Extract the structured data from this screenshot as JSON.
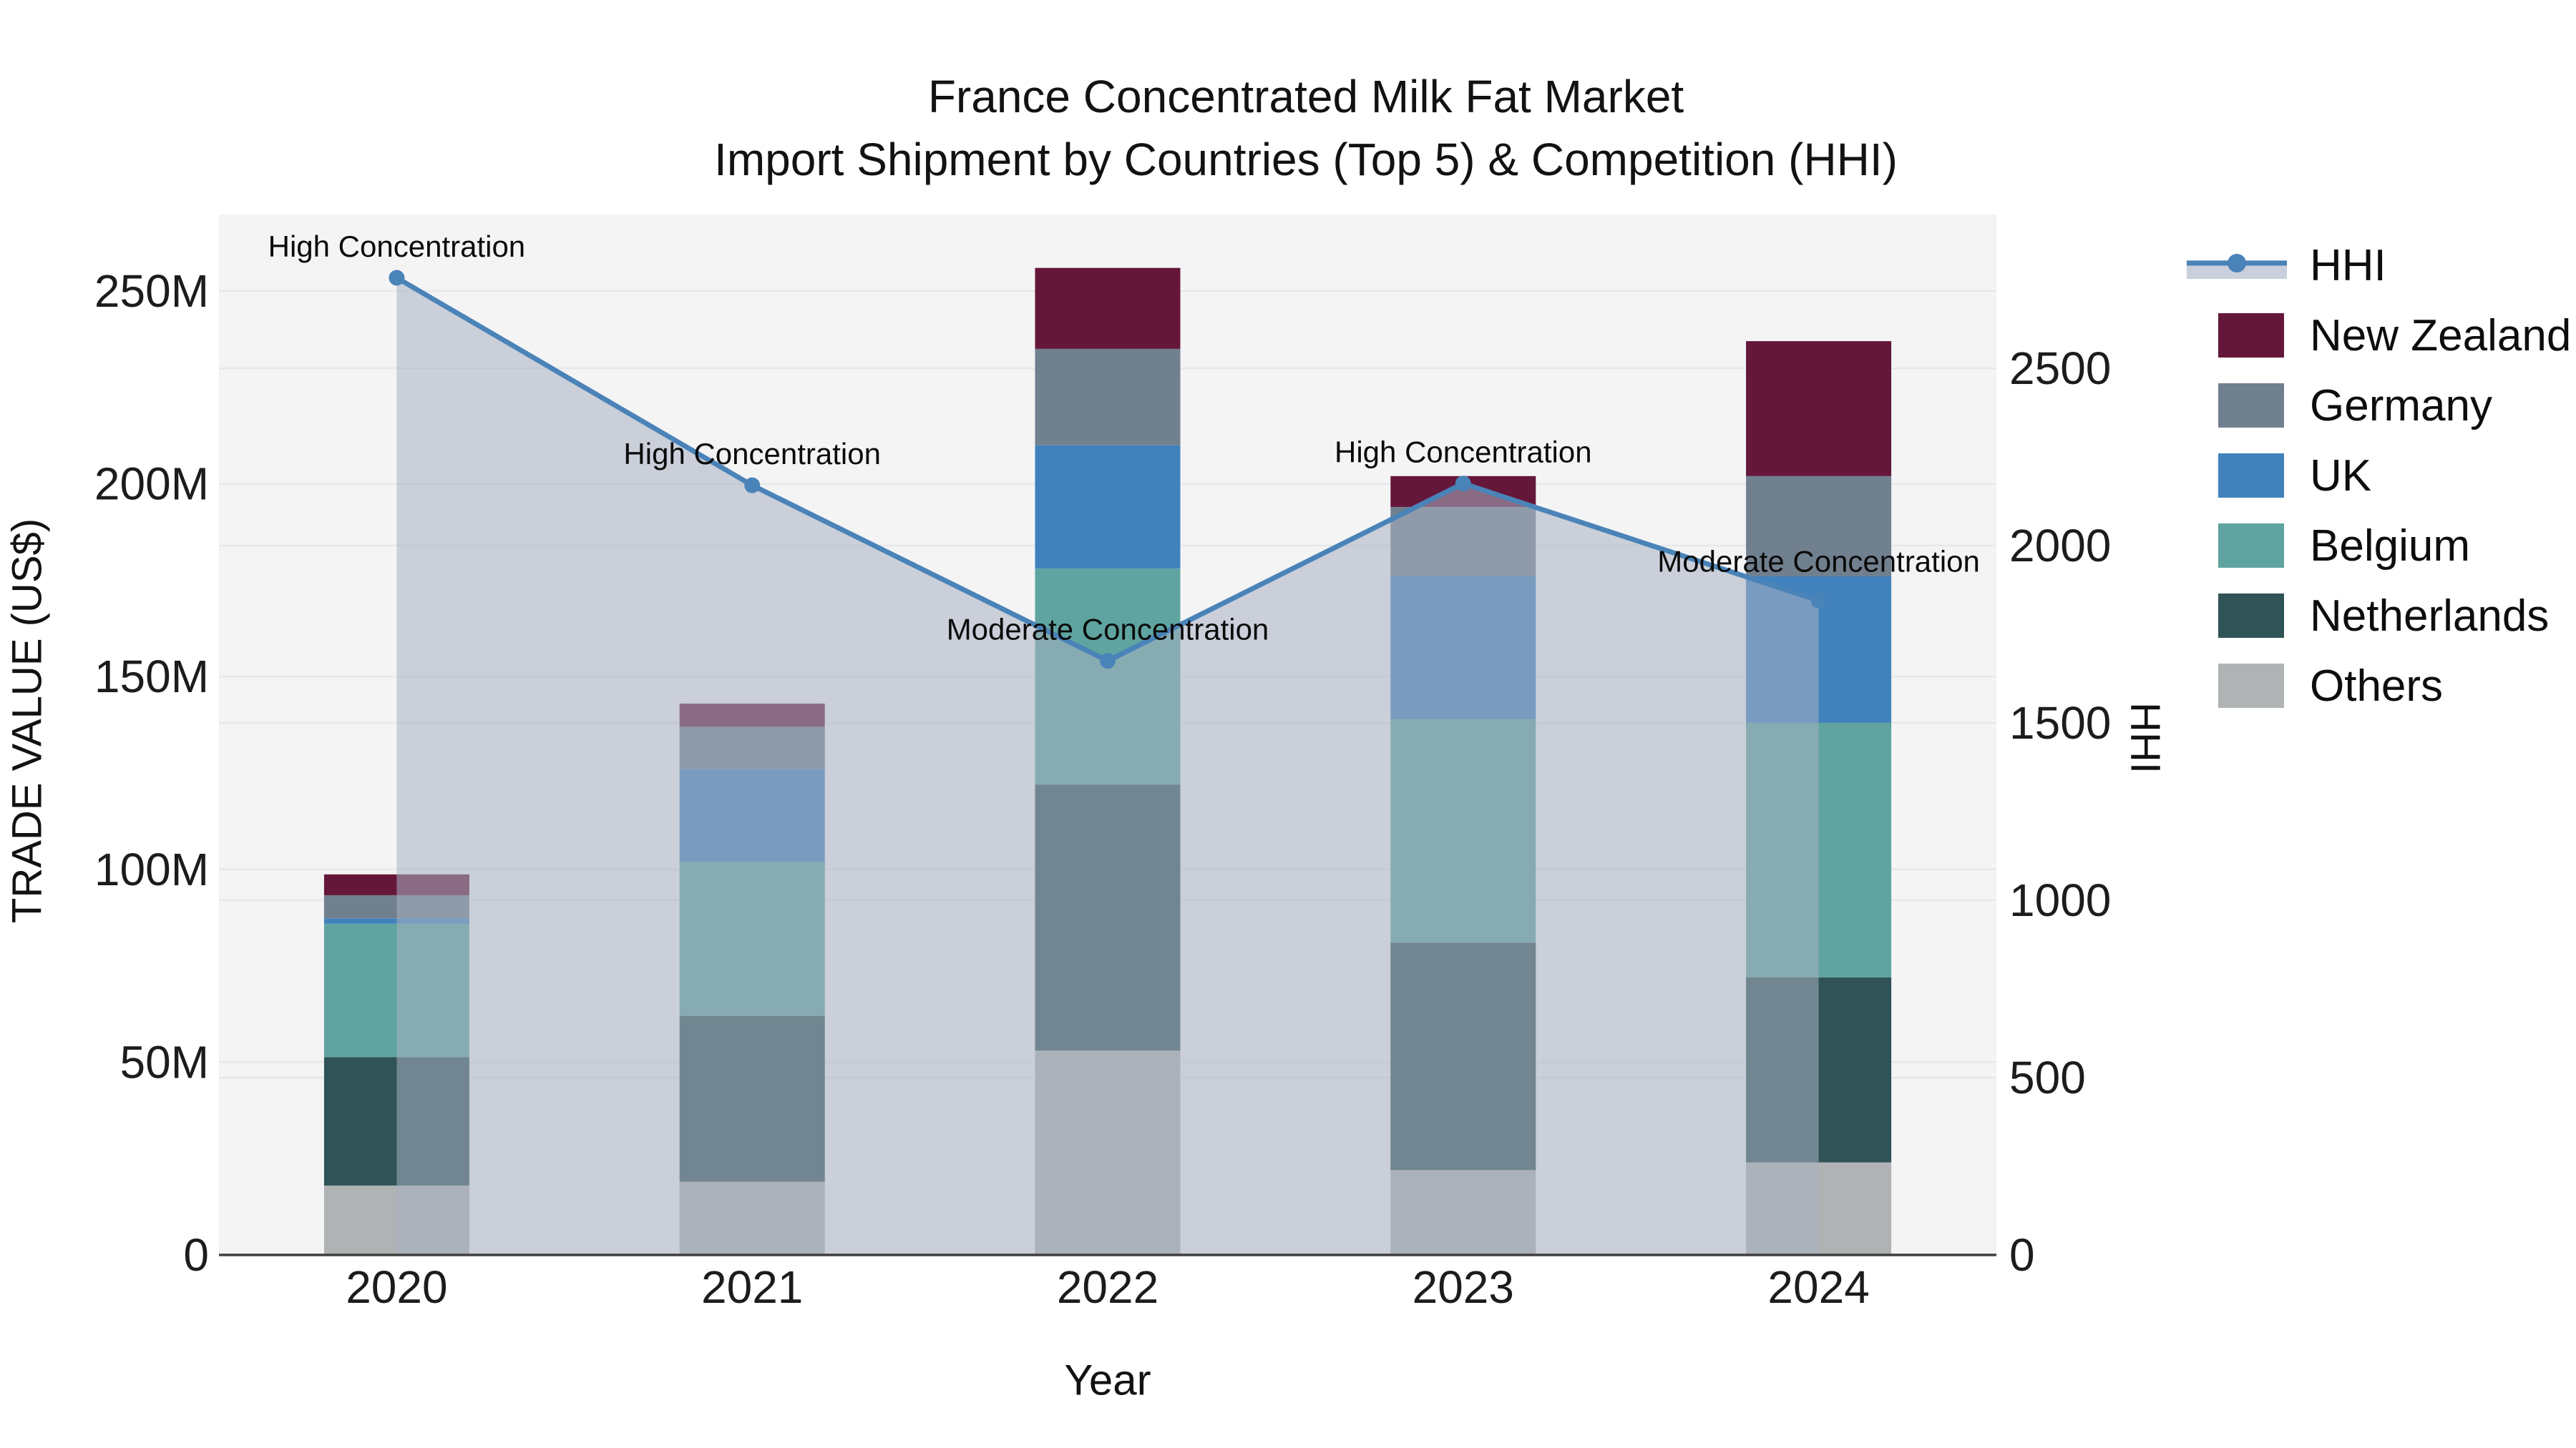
{
  "title": {
    "line1": "France Concentrated Milk Fat Market",
    "line2": "Import Shipment by Countries (Top 5) & Competition (HHI)"
  },
  "axes": {
    "x": {
      "title": "Year",
      "categories": [
        "2020",
        "2021",
        "2022",
        "2023",
        "2024"
      ]
    },
    "y_left": {
      "title": "TRADE VALUE (US$)",
      "ticks": [
        {
          "value": 0,
          "label": "0"
        },
        {
          "value": 50,
          "label": "50M"
        },
        {
          "value": 100,
          "label": "100M"
        },
        {
          "value": 150,
          "label": "150M"
        },
        {
          "value": 200,
          "label": "200M"
        },
        {
          "value": 250,
          "label": "250M"
        }
      ]
    },
    "y_right": {
      "title": "HHI",
      "ticks": [
        {
          "value": 0,
          "label": "0"
        },
        {
          "value": 500,
          "label": "500"
        },
        {
          "value": 1000,
          "label": "1000"
        },
        {
          "value": 1500,
          "label": "1500"
        },
        {
          "value": 2000,
          "label": "2000"
        },
        {
          "value": 2500,
          "label": "2500"
        }
      ]
    }
  },
  "chart_data": {
    "type": "bar+line",
    "categories": [
      "2020",
      "2021",
      "2022",
      "2023",
      "2024"
    ],
    "bar_unit": "Trade value, millions US$",
    "series": [
      {
        "name": "Others",
        "color": "#b0b3b4",
        "values": [
          18,
          19,
          53,
          22,
          24
        ]
      },
      {
        "name": "Netherlands",
        "color": "#2f5356",
        "values": [
          33.3,
          43,
          69,
          59,
          48
        ]
      },
      {
        "name": "Belgium",
        "color": "#5fa4a0",
        "values": [
          34.6,
          40,
          56,
          58,
          66
        ]
      },
      {
        "name": "UK",
        "color": "#4182bd",
        "values": [
          1.4,
          24,
          32,
          37,
          38
        ]
      },
      {
        "name": "Germany",
        "color": "#71808f",
        "values": [
          6,
          11,
          25,
          18,
          26
        ]
      },
      {
        "name": "New Zealand",
        "color": "#65173a",
        "values": [
          5.4,
          6,
          21,
          8,
          35
        ]
      }
    ],
    "bar_totals": [
      98.7,
      143,
      256,
      202,
      237
    ],
    "line_series": {
      "name": "HHI",
      "color": "#4a83b8",
      "area_color": "rgba(167,177,193,0.55)",
      "values": [
        2755,
        2170,
        1675,
        2175,
        1845
      ]
    },
    "annotations": [
      {
        "category": "2020",
        "label": "High Concentration"
      },
      {
        "category": "2021",
        "label": "High Concentration"
      },
      {
        "category": "2022",
        "label": "Moderate Concentration"
      },
      {
        "category": "2023",
        "label": "High Concentration"
      },
      {
        "category": "2024",
        "label": "Moderate Concentration"
      }
    ],
    "ylim_left": [
      0,
      270
    ],
    "ylim_right": [
      0,
      2930
    ],
    "grid": true,
    "legend_position": "right"
  },
  "legend": {
    "items": [
      {
        "label": "HHI",
        "swatch": "line",
        "color": "#4a83b8"
      },
      {
        "label": "New Zealand",
        "swatch": "box",
        "color": "#65173a"
      },
      {
        "label": "Germany",
        "swatch": "box",
        "color": "#71808f"
      },
      {
        "label": "UK",
        "swatch": "box",
        "color": "#4182bd"
      },
      {
        "label": "Belgium",
        "swatch": "box",
        "color": "#5fa4a0"
      },
      {
        "label": "Netherlands",
        "swatch": "box",
        "color": "#2f5356"
      },
      {
        "label": "Others",
        "swatch": "box",
        "color": "#b0b3b4"
      }
    ]
  },
  "colors": {
    "plot_bg": "#f4f4f5",
    "grid": "#e7e8ea",
    "axis_line": "#3f3f3f",
    "text": "#111111",
    "annotation_text": "#0b0b0b",
    "area_fill": "rgba(167,177,193,0.55)"
  }
}
